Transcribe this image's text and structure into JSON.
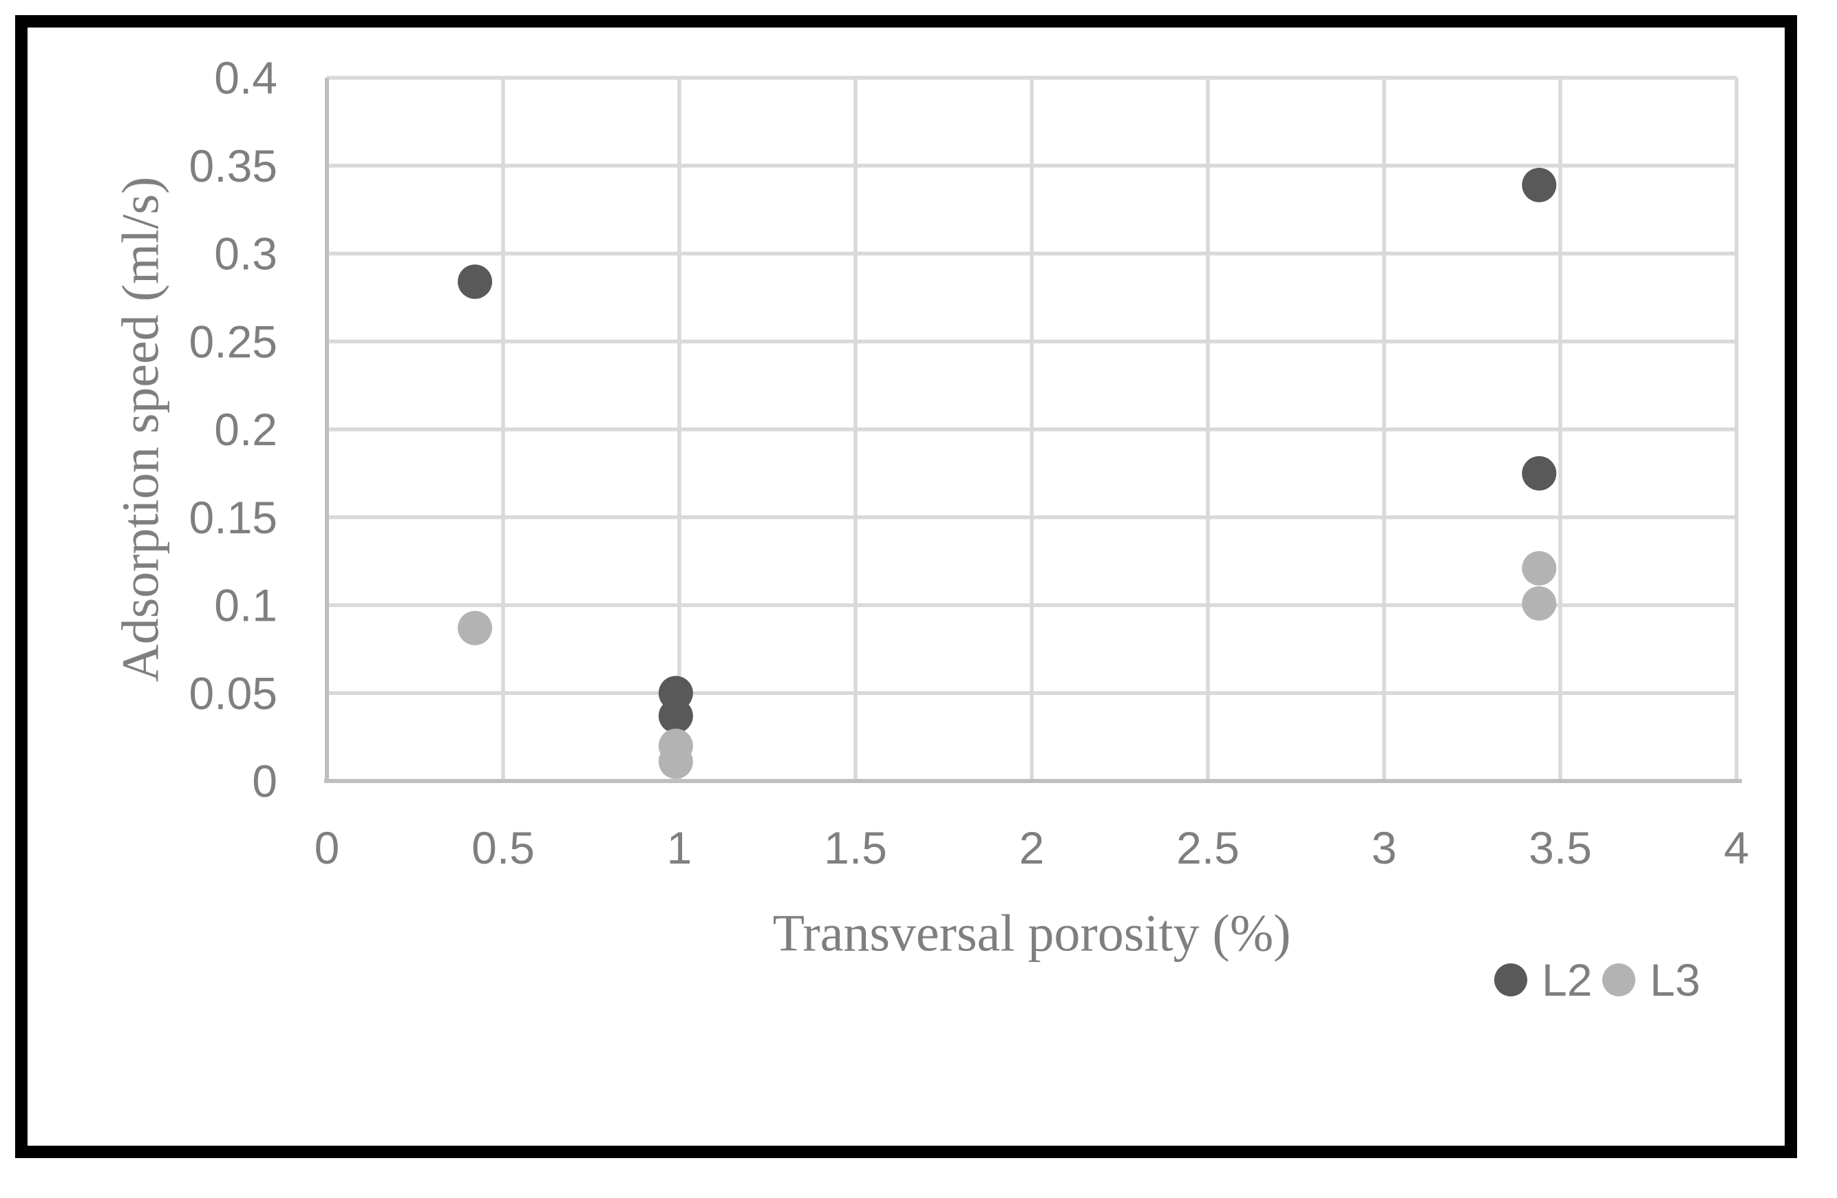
{
  "figure": {
    "frame_color": "#000000",
    "background_color": "#ffffff"
  },
  "chart_data": {
    "type": "scatter",
    "title": "",
    "xlabel": "Transversal porosity (%)",
    "ylabel": "Adsorption speed (ml/s)",
    "xlim": [
      0,
      4
    ],
    "ylim": [
      0,
      0.4
    ],
    "x_ticks": [
      0,
      0.5,
      1,
      1.5,
      2,
      2.5,
      3,
      3.5,
      4
    ],
    "x_tick_labels": [
      "0",
      "0.5",
      "1",
      "1.5",
      "2",
      "2.5",
      "3",
      "3.5",
      "4"
    ],
    "y_ticks": [
      0,
      0.05,
      0.1,
      0.15,
      0.2,
      0.25,
      0.3,
      0.35,
      0.4
    ],
    "y_tick_labels": [
      "0",
      "0.05",
      "0.1",
      "0.15",
      "0.2",
      "0.25",
      "0.3",
      "0.35",
      "0.4"
    ],
    "grid": true,
    "legend_position": "bottom-right",
    "series": [
      {
        "name": "L2",
        "color": "#595959",
        "points": [
          {
            "x": 0.42,
            "y": 0.284
          },
          {
            "x": 0.99,
            "y": 0.05
          },
          {
            "x": 0.99,
            "y": 0.037
          },
          {
            "x": 3.44,
            "y": 0.339
          },
          {
            "x": 3.44,
            "y": 0.175
          }
        ]
      },
      {
        "name": "L3",
        "color": "#b3b3b3",
        "points": [
          {
            "x": 0.42,
            "y": 0.087
          },
          {
            "x": 0.99,
            "y": 0.02
          },
          {
            "x": 0.99,
            "y": 0.011
          },
          {
            "x": 3.44,
            "y": 0.121
          },
          {
            "x": 3.44,
            "y": 0.101
          }
        ]
      }
    ],
    "colors": {
      "gridline": "#d9d9d9",
      "axis_line": "#bfbfbf",
      "text": "#7f7f7f"
    }
  }
}
